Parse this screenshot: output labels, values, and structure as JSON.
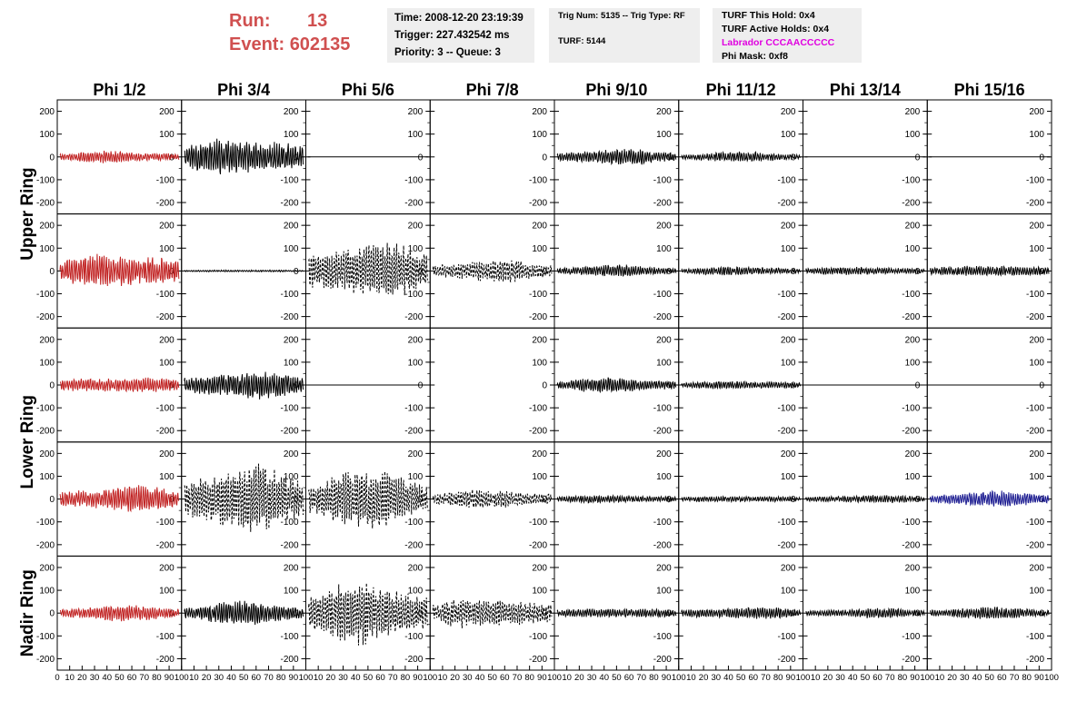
{
  "header": {
    "run_label": "Run:",
    "run_value": "13",
    "event_label": "Event:",
    "event_value": "602135",
    "time": "Time: 2008-12-20 23:19:39",
    "trigger": "Trigger: 227.432542 ms",
    "priority": "Priority: 3 -- Queue: 3",
    "trig_num": "Trig Num: 5135 -- Trig Type: RF",
    "turf": "TURF: 5144",
    "turf_hold": "TURF This Hold: 0x4",
    "turf_active": "TURF Active Holds: 0x4",
    "labrador": "Labrador CCCAACCCCC",
    "phi_mask": "Phi Mask: 0xf8"
  },
  "chart_data": {
    "type": "line",
    "columns": [
      "Phi 1/2",
      "Phi 3/4",
      "Phi 5/6",
      "Phi 7/8",
      "Phi 9/10",
      "Phi 11/12",
      "Phi 13/14",
      "Phi 15/16"
    ],
    "rows": [
      "Upper Ring",
      "Lower Ring",
      "Nadir Ring"
    ],
    "ylim": [
      -250,
      250
    ],
    "y_ticks": [
      "200",
      "100",
      "0",
      "-100",
      "-200"
    ],
    "xlim": [
      0,
      100
    ],
    "x_ticks": [
      "0",
      "10",
      "20",
      "30",
      "40",
      "50",
      "60",
      "70",
      "80",
      "90",
      "100"
    ],
    "colors": {
      "red": "#c02020",
      "black": "#000000",
      "blue": "#1a1a90"
    },
    "panels": [
      [
        {
          "amp": 30,
          "color": "red",
          "dash": false
        },
        {
          "amp": 105,
          "color": "black",
          "dash": false
        },
        {
          "amp": 0,
          "color": "black",
          "dash": false
        },
        {
          "amp": null
        },
        {
          "amp": 40,
          "color": "black",
          "dash": false
        },
        {
          "amp": 24,
          "color": "black",
          "dash": false
        },
        {
          "amp": 0,
          "color": "black",
          "dash": false
        },
        {
          "amp": 0,
          "color": "black",
          "dash": false
        }
      ],
      [
        {
          "amp": 95,
          "color": "red",
          "dash": false
        },
        {
          "amp": 6,
          "color": "black",
          "dash": false
        },
        {
          "amp": 150,
          "color": "black",
          "dash": true
        },
        {
          "amp": 55,
          "color": "black",
          "dash": true
        },
        {
          "amp": 28,
          "color": "black",
          "dash": false
        },
        {
          "amp": 22,
          "color": "black",
          "dash": false
        },
        {
          "amp": 22,
          "color": "black",
          "dash": false
        },
        {
          "amp": 32,
          "color": "black",
          "dash": false
        }
      ],
      [
        {
          "amp": 45,
          "color": "red",
          "dash": false
        },
        {
          "amp": 75,
          "color": "black",
          "dash": false
        },
        {
          "amp": 0,
          "color": "black",
          "dash": false
        },
        {
          "amp": null
        },
        {
          "amp": 38,
          "color": "black",
          "dash": false
        },
        {
          "amp": 22,
          "color": "black",
          "dash": false
        },
        {
          "amp": 0,
          "color": "black",
          "dash": false
        },
        {
          "amp": 0,
          "color": "black",
          "dash": false
        }
      ],
      [
        {
          "amp": 70,
          "color": "red",
          "dash": false
        },
        {
          "amp": 170,
          "color": "black",
          "dash": true
        },
        {
          "amp": 145,
          "color": "black",
          "dash": true
        },
        {
          "amp": 50,
          "color": "black",
          "dash": true
        },
        {
          "amp": 22,
          "color": "black",
          "dash": false
        },
        {
          "amp": 18,
          "color": "black",
          "dash": false
        },
        {
          "amp": 22,
          "color": "black",
          "dash": false
        },
        {
          "amp": 40,
          "color": "blue",
          "dash": false
        }
      ],
      [
        {
          "amp": 40,
          "color": "red",
          "dash": false
        },
        {
          "amp": 55,
          "color": "black",
          "dash": false
        },
        {
          "amp": 155,
          "color": "black",
          "dash": true
        },
        {
          "amp": 85,
          "color": "black",
          "dash": true
        },
        {
          "amp": 28,
          "color": "black",
          "dash": false
        },
        {
          "amp": 32,
          "color": "black",
          "dash": false
        },
        {
          "amp": 25,
          "color": "black",
          "dash": false
        },
        {
          "amp": 30,
          "color": "black",
          "dash": false
        }
      ]
    ]
  }
}
